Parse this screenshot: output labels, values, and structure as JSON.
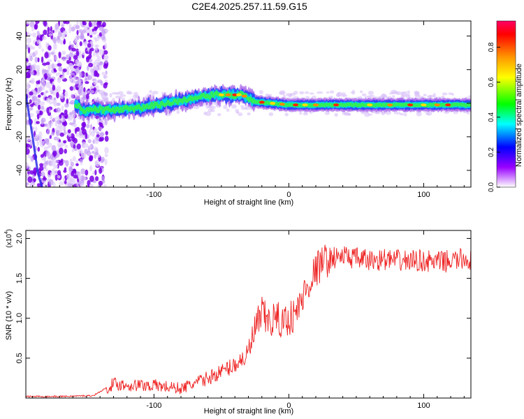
{
  "title": "C2E4.2025.257.11.59.G15",
  "colors": {
    "snr_line": "#ee2222",
    "axis": "#000000",
    "colorbar": [
      "#ff0044",
      "#ff0000",
      "#ff8800",
      "#ffff00",
      "#00ff00",
      "#00ffff",
      "#0000ff",
      "#8800ff",
      "#ffffff"
    ]
  },
  "chart_data": [
    {
      "type": "heatmap",
      "name": "spectrogram",
      "title": "C2E4.2025.257.11.59.G15",
      "xlabel": "Height of straight line (km)",
      "ylabel": "Frequency (Hz)",
      "xlim": [
        -195,
        135
      ],
      "ylim": [
        -50,
        49
      ],
      "xticks": [
        -100,
        0,
        100
      ],
      "xtick_labels": [
        "-100",
        "0",
        "100"
      ],
      "yticks": [
        -40,
        -20,
        0,
        20,
        40
      ],
      "ytick_labels": [
        "-40",
        "-20",
        "0",
        "20",
        "40"
      ],
      "colorbar": {
        "label": "Normalized spectral amplitude",
        "range": [
          0,
          0.95
        ],
        "ticks": [
          0.0,
          0.2,
          0.4,
          0.6,
          0.8
        ],
        "tick_labels": [
          "0.0",
          "0.2",
          "0.4",
          "0.6",
          "0.8"
        ]
      },
      "ridge": {
        "description_points": [
          {
            "x": -155,
            "y": -4
          },
          {
            "x": -130,
            "y": -4
          },
          {
            "x": -110,
            "y": -3
          },
          {
            "x": -90,
            "y": 0
          },
          {
            "x": -70,
            "y": 3
          },
          {
            "x": -55,
            "y": 5
          },
          {
            "x": -45,
            "y": 5
          },
          {
            "x": -35,
            "y": 5
          },
          {
            "x": -25,
            "y": 1
          },
          {
            "x": 0,
            "y": -1
          },
          {
            "x": 50,
            "y": -1
          },
          {
            "x": 100,
            "y": -1
          },
          {
            "x": 135,
            "y": -1
          }
        ]
      }
    },
    {
      "type": "line",
      "name": "snr",
      "xlabel": "Height of straight line (km)",
      "ylabel": "SNR (10 * v/v)",
      "y_multiplier": "(x10^4)",
      "y_multiplier_base": "(x10",
      "y_multiplier_exp": "4",
      "xlim": [
        -195,
        135
      ],
      "ylim": [
        0,
        2.1
      ],
      "xticks": [
        -100,
        0,
        100
      ],
      "xtick_labels": [
        "-100",
        "0",
        "100"
      ],
      "yticks": [
        0.5,
        1.0,
        1.5,
        2.0
      ],
      "ytick_labels": [
        "0.5",
        "1.0",
        "1.5",
        "2.0"
      ],
      "series": [
        {
          "name": "SNR",
          "x": [
            -195,
            -170,
            -145,
            -130,
            -120,
            -100,
            -80,
            -70,
            -60,
            -50,
            -40,
            -30,
            -25,
            -20,
            -15,
            -10,
            -5,
            0,
            5,
            10,
            15,
            20,
            25,
            30,
            40,
            50,
            60,
            70,
            80,
            90,
            100,
            110,
            120,
            130,
            135
          ],
          "y": [
            0.02,
            0.02,
            0.03,
            0.18,
            0.16,
            0.16,
            0.12,
            0.18,
            0.25,
            0.33,
            0.42,
            0.55,
            0.85,
            1.05,
            0.95,
            1.0,
            0.95,
            1.0,
            1.05,
            1.25,
            1.45,
            1.6,
            1.7,
            1.75,
            1.78,
            1.75,
            1.72,
            1.74,
            1.72,
            1.72,
            1.72,
            1.7,
            1.72,
            1.74,
            1.73
          ]
        }
      ]
    }
  ]
}
